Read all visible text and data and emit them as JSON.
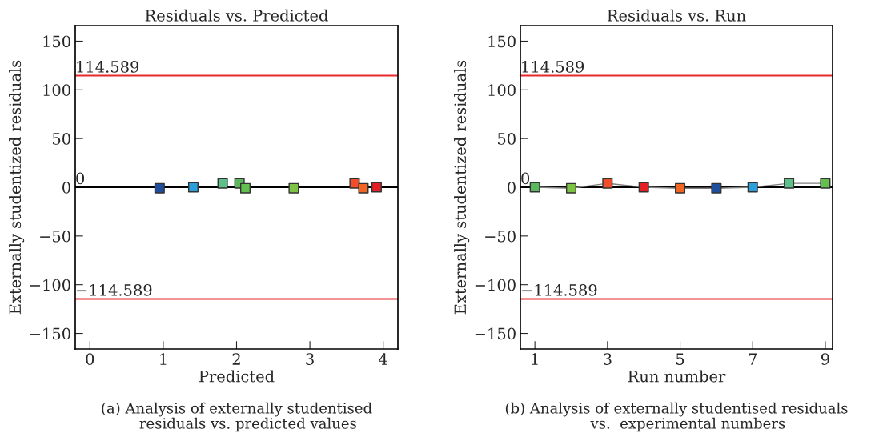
{
  "chart_data": [
    {
      "type": "scatter",
      "title": "Residuals vs. Predicted",
      "xlabel": "Predicted",
      "ylabel": "Externally studentized residuals",
      "x": [
        0.95,
        1.41,
        1.81,
        2.04,
        2.12,
        2.78,
        3.61,
        3.73,
        3.91
      ],
      "series": [
        {
          "values": [
            -1,
            0,
            4,
            4,
            -1,
            -1,
            4,
            -1,
            0
          ],
          "colors": [
            "#1f4e9c",
            "#2a9fdc",
            "#5dbf8a",
            "#5cb85c",
            "#63c04f",
            "#7dc242",
            "#f04e2a",
            "#f26522",
            "#e31e24"
          ]
        }
      ],
      "marker": "square",
      "xlim": [
        -0.2,
        4.2
      ],
      "ylim": [
        -166,
        166
      ],
      "xticks": [
        0,
        1,
        2,
        3,
        4
      ],
      "yticks": [
        {
          "value": -150,
          "label": "−150"
        },
        {
          "value": -100,
          "label": "−100"
        },
        {
          "value": -50,
          "label": "−50"
        },
        0,
        50,
        100,
        150
      ],
      "ref_lines": [
        {
          "axis": "y",
          "value": 114.589,
          "label": "114.589",
          "color": "#e8282d"
        },
        {
          "axis": "y",
          "value": -114.589,
          "label": "−114.589",
          "color": "#e8282d"
        },
        {
          "axis": "y",
          "value": 0,
          "label": "0",
          "color": "#000000"
        }
      ],
      "grid": false,
      "legend": false,
      "annotations": [
        "(a) Analysis of externally studentised\n     residuals vs. predicted values"
      ]
    },
    {
      "type": "line",
      "title": "Residuals vs. Run",
      "xlabel": "Run number",
      "ylabel": "Externally studentized residuals",
      "x": [
        1,
        2,
        3,
        4,
        5,
        6,
        7,
        8,
        9
      ],
      "series": [
        {
          "values": [
            0,
            -1,
            4,
            0,
            -1,
            -1,
            0,
            4,
            4
          ],
          "color": "#808080",
          "colors": [
            "#5cb85c",
            "#7dc242",
            "#f04e2a",
            "#e31e24",
            "#f26522",
            "#1f4e9c",
            "#2a9fdc",
            "#5dbf8a",
            "#63c04f"
          ]
        }
      ],
      "marker": "square",
      "line_style": "solid",
      "xlim": [
        0.6,
        9.2
      ],
      "ylim": [
        -166,
        166
      ],
      "xticks": [
        1,
        3,
        5,
        7,
        9
      ],
      "yticks": [
        {
          "value": -150,
          "label": "−150"
        },
        {
          "value": -100,
          "label": "−100"
        },
        {
          "value": -50,
          "label": "−50"
        },
        0,
        50,
        100,
        150
      ],
      "ref_lines": [
        {
          "axis": "y",
          "value": 114.589,
          "label": "114.589",
          "color": "#e8282d"
        },
        {
          "axis": "y",
          "value": -114.589,
          "label": "−114.589",
          "color": "#e8282d"
        },
        {
          "axis": "y",
          "value": 0,
          "label": "0",
          "color": "#000000"
        }
      ],
      "grid": false,
      "legend": false,
      "annotations": [
        "(b) Analysis of externally studentised residuals\n     vs.  experimental numbers"
      ]
    }
  ]
}
